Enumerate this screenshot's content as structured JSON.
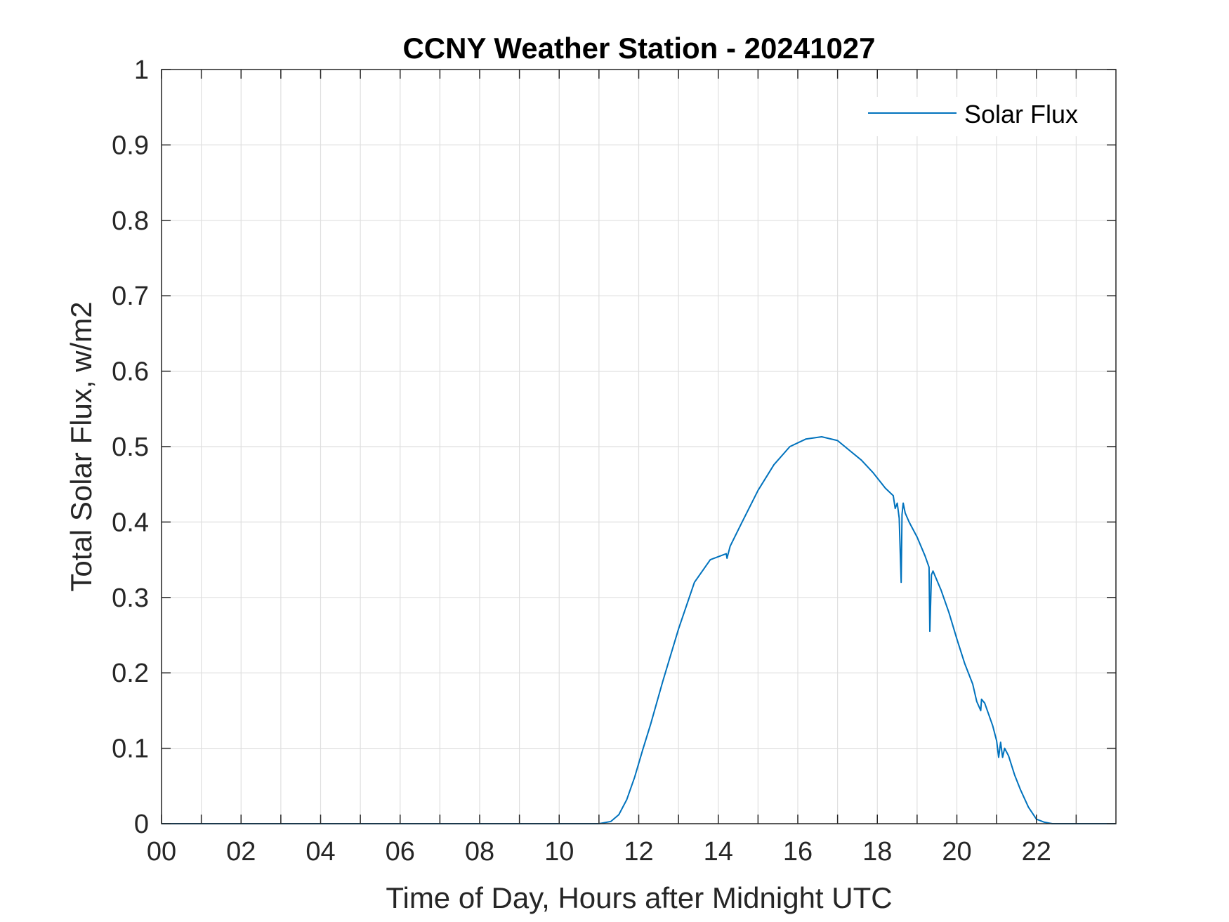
{
  "chart_data": {
    "type": "line",
    "title": "CCNY Weather Station - 20241027",
    "xlabel": "Time of Day, Hours after Midnight UTC",
    "ylabel": "Total Solar Flux, w/m2",
    "xlim": [
      0,
      24
    ],
    "ylim": [
      0,
      1
    ],
    "grid": true,
    "legend_position": "top-right",
    "x_ticks": [
      0,
      2,
      4,
      6,
      8,
      10,
      12,
      14,
      16,
      18,
      20,
      22
    ],
    "x_tick_labels": [
      "00",
      "02",
      "04",
      "06",
      "08",
      "10",
      "12",
      "14",
      "16",
      "18",
      "20",
      "22"
    ],
    "x_minor_grid": [
      1,
      3,
      5,
      7,
      9,
      11,
      13,
      15,
      17,
      19,
      21,
      23
    ],
    "y_ticks": [
      0,
      0.1,
      0.2,
      0.3,
      0.4,
      0.5,
      0.6,
      0.7,
      0.8,
      0.9,
      1
    ],
    "y_tick_labels": [
      "0",
      "0.1",
      "0.2",
      "0.3",
      "0.4",
      "0.5",
      "0.6",
      "0.7",
      "0.8",
      "0.9",
      "1"
    ],
    "series": [
      {
        "name": "Solar Flux",
        "color": "#0072BD",
        "x": [
          0,
          11.0,
          11.3,
          11.5,
          11.7,
          11.9,
          12.1,
          12.3,
          12.6,
          13.0,
          13.4,
          13.8,
          14.1,
          14.2,
          14.22,
          14.3,
          14.6,
          15.0,
          15.4,
          15.8,
          16.2,
          16.6,
          17.0,
          17.3,
          17.6,
          17.9,
          18.2,
          18.4,
          18.45,
          18.5,
          18.55,
          18.6,
          18.62,
          18.65,
          18.7,
          18.8,
          19.0,
          19.2,
          19.3,
          19.32,
          19.36,
          19.4,
          19.6,
          19.8,
          20.0,
          20.2,
          20.4,
          20.5,
          20.6,
          20.62,
          20.7,
          20.8,
          20.9,
          21.0,
          21.05,
          21.1,
          21.15,
          21.2,
          21.3,
          21.45,
          21.6,
          21.8,
          22.0,
          22.2,
          22.4,
          24.0
        ],
        "values": [
          0,
          0,
          0.003,
          0.012,
          0.032,
          0.062,
          0.098,
          0.132,
          0.188,
          0.258,
          0.32,
          0.35,
          0.356,
          0.358,
          0.352,
          0.368,
          0.4,
          0.442,
          0.476,
          0.5,
          0.51,
          0.513,
          0.508,
          0.495,
          0.482,
          0.465,
          0.445,
          0.435,
          0.418,
          0.425,
          0.405,
          0.32,
          0.41,
          0.425,
          0.412,
          0.4,
          0.38,
          0.355,
          0.34,
          0.255,
          0.33,
          0.335,
          0.31,
          0.28,
          0.245,
          0.212,
          0.185,
          0.162,
          0.15,
          0.165,
          0.16,
          0.145,
          0.13,
          0.11,
          0.088,
          0.108,
          0.088,
          0.1,
          0.09,
          0.065,
          0.045,
          0.022,
          0.006,
          0.002,
          0,
          0
        ]
      }
    ]
  }
}
